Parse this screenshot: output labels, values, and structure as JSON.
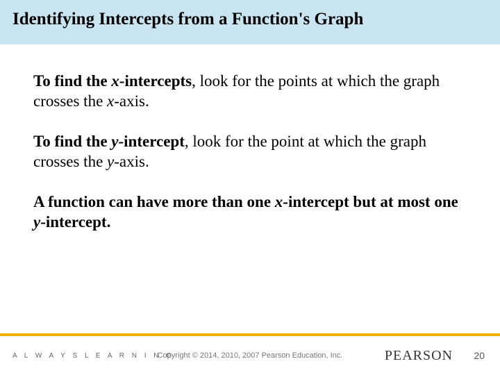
{
  "colors": {
    "title_band_bg": "#cae5f2",
    "accent_line": "#f2b100",
    "text": "#000000",
    "footer_text": "#777777",
    "background": "#ffffff"
  },
  "title": "Identifying Intercepts from a Function's Graph",
  "body": {
    "p1": {
      "lead_bold_pre": "To find the ",
      "lead_bold_var": "x",
      "lead_bold_post": "-intercepts",
      "rest_pre": ", look for the points at which the graph crosses the ",
      "rest_var": "x",
      "rest_post": "-axis."
    },
    "p2": {
      "lead_bold_pre": "To find the ",
      "lead_bold_var": "y",
      "lead_bold_post": "-intercept",
      "rest_pre": ", look for the point at which the graph crosses the ",
      "rest_var": "y",
      "rest_post": "-axis."
    },
    "p3": {
      "pre": "A function can have more than one ",
      "var1": "x",
      "mid": "-intercept but at most one ",
      "var2": "y",
      "post": "-intercept."
    }
  },
  "footer": {
    "always": "A L W A Y S   L E A R N I N G",
    "copyright": "Copyright © 2014, 2010, 2007 Pearson Education, Inc.",
    "brand": "PEARSON",
    "page": "20"
  }
}
